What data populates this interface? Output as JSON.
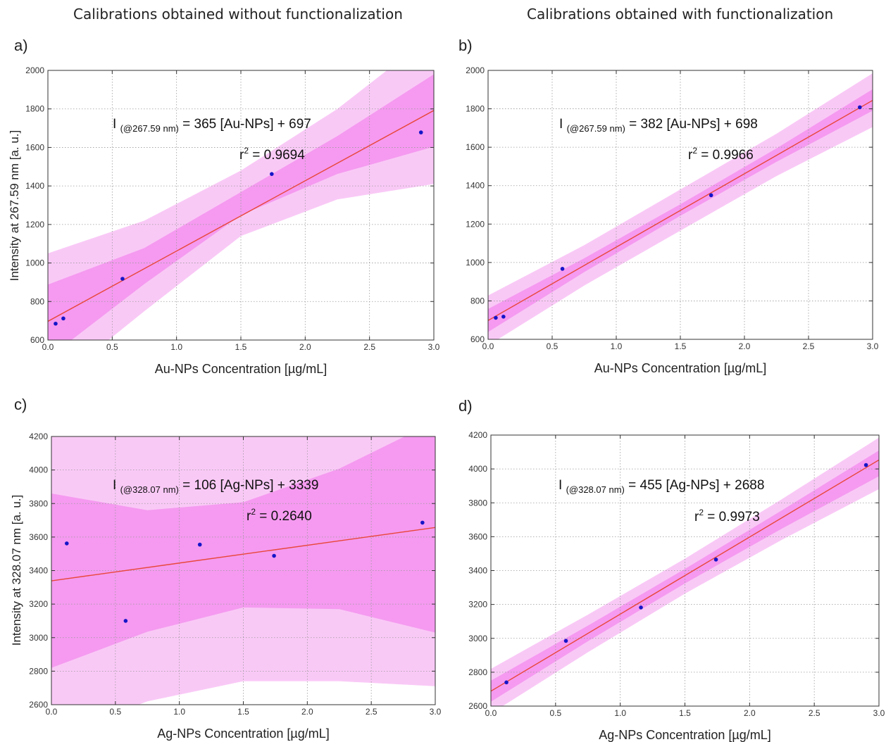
{
  "headings": {
    "left": "Calibrations obtained without functionalization",
    "right": "Calibrations obtained with functionalization"
  },
  "colors": {
    "fit_line": "#e8473a",
    "point": "#1515c8",
    "band_inner": "#f59af0",
    "band_outer": "#f9c9f6",
    "grid": "#9a9a9a",
    "axis": "#333333"
  },
  "chart_data": [
    {
      "type": "scatter",
      "panel": "a)",
      "xlabel": "Au-NPs Concentration [µg/mL]",
      "ylabel": "Intensity at 267.59 nm  [a. u.]",
      "xlim": [
        0,
        3.0
      ],
      "ylim": [
        600,
        2000
      ],
      "xticks": [
        "0.0",
        "0.5",
        "1.0",
        "1.5",
        "2.0",
        "2.5",
        "3.0"
      ],
      "yticks": [
        "600",
        "800",
        "1000",
        "1200",
        "1400",
        "1600",
        "1800",
        "2000"
      ],
      "grid": true,
      "points": [
        [
          0.06,
          685
        ],
        [
          0.12,
          712
        ],
        [
          0.58,
          918
        ],
        [
          1.74,
          1462
        ],
        [
          2.9,
          1678
        ]
      ],
      "fit": {
        "slope": 365,
        "intercept": 697
      },
      "bands": {
        "inner": [
          [
            0,
            888,
            506
          ],
          [
            0.75,
            1078,
            891
          ],
          [
            1.5,
            1368,
            1249
          ],
          [
            2.25,
            1659,
            1462
          ],
          [
            3.0,
            1980,
            1604
          ]
        ],
        "outer": [
          [
            0,
            1050,
            346
          ],
          [
            0.75,
            1220,
            750
          ],
          [
            1.5,
            1480,
            1140
          ],
          [
            2.25,
            1800,
            1330
          ],
          [
            3.0,
            2190,
            1410
          ]
        ]
      },
      "annotations": {
        "eq_lead": "I",
        "eq_sub": "(@267.59 nm)",
        "eq_rest": "= 365 [Au-NPs] + 697",
        "r2_lead": "r",
        "r2_sup": "2",
        "r2_rest": "= 0.9694"
      }
    },
    {
      "type": "scatter",
      "panel": "b)",
      "xlabel": "Au-NPs Concentration [µg/mL]",
      "ylabel": "",
      "xlim": [
        0,
        3.0
      ],
      "ylim": [
        600,
        2000
      ],
      "xticks": [
        "0.0",
        "0.5",
        "1.0",
        "1.5",
        "2.0",
        "2.5",
        "3.0"
      ],
      "yticks": [
        "600",
        "800",
        "1000",
        "1200",
        "1400",
        "1600",
        "1800",
        "2000"
      ],
      "grid": true,
      "points": [
        [
          0.06,
          712
        ],
        [
          0.12,
          718
        ],
        [
          0.58,
          967
        ],
        [
          1.74,
          1350
        ],
        [
          2.9,
          1808
        ]
      ],
      "fit": {
        "slope": 382,
        "intercept": 698
      },
      "bands": {
        "inner": [
          [
            0,
            758,
            638
          ],
          [
            0.75,
            1022,
            950
          ],
          [
            1.5,
            1303,
            1243
          ],
          [
            2.25,
            1594,
            1524
          ],
          [
            3.0,
            1902,
            1790
          ]
        ],
        "outer": [
          [
            0,
            828,
            568
          ],
          [
            0.75,
            1090,
            880
          ],
          [
            1.5,
            1380,
            1166
          ],
          [
            2.25,
            1670,
            1450
          ],
          [
            3.0,
            1985,
            1705
          ]
        ]
      },
      "annotations": {
        "eq_lead": "I",
        "eq_sub": "(@267.59 nm)",
        "eq_rest": "= 382 [Au-NPs] + 698",
        "r2_lead": "r",
        "r2_sup": "2",
        "r2_rest": "= 0.9966"
      }
    },
    {
      "type": "scatter",
      "panel": "c)",
      "xlabel": "Ag-NPs Concentration [µg/mL]",
      "ylabel": "Intensity at 328.07 nm  [a. u.]",
      "xlim": [
        0,
        3.0
      ],
      "ylim": [
        2600,
        4200
      ],
      "xticks": [
        "0.0",
        "0.5",
        "1.0",
        "1.5",
        "2.0",
        "2.5",
        "3.0"
      ],
      "yticks": [
        "2600",
        "2800",
        "3000",
        "3200",
        "3400",
        "3600",
        "3800",
        "4000",
        "4200"
      ],
      "grid": true,
      "points": [
        [
          0.12,
          3562
        ],
        [
          0.58,
          3100
        ],
        [
          1.16,
          3555
        ],
        [
          1.74,
          3488
        ],
        [
          2.9,
          3686
        ]
      ],
      "fit": {
        "slope": 106,
        "intercept": 3339
      },
      "bands": {
        "inner": [
          [
            0,
            3860,
            2820
          ],
          [
            0.75,
            3760,
            3035
          ],
          [
            1.5,
            3808,
            3180
          ],
          [
            2.25,
            4008,
            3170
          ],
          [
            3.0,
            4290,
            3030
          ]
        ],
        "outer": [
          [
            0,
            4420,
            2400
          ],
          [
            0.75,
            4320,
            2620
          ],
          [
            1.5,
            4380,
            2740
          ],
          [
            2.25,
            4560,
            2740
          ],
          [
            3.0,
            4850,
            2710
          ]
        ]
      },
      "annotations": {
        "eq_lead": "I",
        "eq_sub": "(@328.07 nm)",
        "eq_rest": "= 106 [Ag-NPs] + 3339",
        "r2_lead": "r",
        "r2_sup": "2",
        "r2_rest": "= 0.2640"
      }
    },
    {
      "type": "scatter",
      "panel": "d)",
      "xlabel": "Ag-NPs Concentration [µg/mL]",
      "ylabel": "",
      "xlim": [
        0,
        3.0
      ],
      "ylim": [
        2600,
        4200
      ],
      "xticks": [
        "0.0",
        "0.5",
        "1.0",
        "1.5",
        "2.0",
        "2.5",
        "3.0"
      ],
      "yticks": [
        "2600",
        "2800",
        "3000",
        "3200",
        "3400",
        "3600",
        "3800",
        "4000",
        "4200"
      ],
      "grid": true,
      "points": [
        [
          0.12,
          2740
        ],
        [
          0.58,
          2985
        ],
        [
          1.16,
          3182
        ],
        [
          1.74,
          3465
        ],
        [
          2.9,
          4023
        ]
      ],
      "fit": {
        "slope": 455,
        "intercept": 2688
      },
      "bands": {
        "inner": [
          [
            0,
            2750,
            2626
          ],
          [
            0.75,
            3075,
            2983
          ],
          [
            1.5,
            3410,
            3324
          ],
          [
            2.25,
            3756,
            3648
          ],
          [
            3.0,
            4109,
            3957
          ]
        ],
        "outer": [
          [
            0,
            2820,
            2556
          ],
          [
            0.75,
            3140,
            2918
          ],
          [
            1.5,
            3470,
            3264
          ],
          [
            2.25,
            3822,
            3582
          ],
          [
            3.0,
            4185,
            3881
          ]
        ]
      },
      "annotations": {
        "eq_lead": "I",
        "eq_sub": "(@328.07 nm)",
        "eq_rest": "= 455 [Ag-NPs] + 2688",
        "r2_lead": "r",
        "r2_sup": "2",
        "r2_rest": "= 0.9973"
      }
    }
  ]
}
